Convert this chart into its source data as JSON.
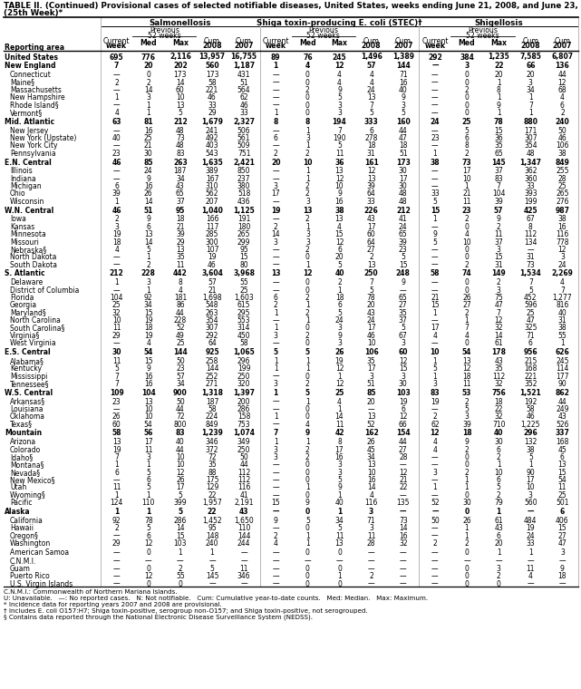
{
  "title_line1": "TABLE II. (Continued) Provisional cases of selected notifiable diseases, United States, weeks ending June 21, 2008, and June 23, 2007",
  "title_line2": "(25th Week)*",
  "col_groups": [
    "Salmonellosis",
    "Shiga toxin-producing E. coli (STEC)†",
    "Shigellosis"
  ],
  "rows": [
    [
      "United States",
      "695",
      "776",
      "2,116",
      "13,957",
      "16,755",
      "89",
      "76",
      "245",
      "1,496",
      "1,389",
      "292",
      "384",
      "1,235",
      "7,585",
      "6,807"
    ],
    [
      "New England",
      "7",
      "20",
      "202",
      "560",
      "1,187",
      "1",
      "4",
      "12",
      "57",
      "144",
      "—",
      "3",
      "22",
      "66",
      "136"
    ],
    [
      "Connecticut",
      "—",
      "0",
      "173",
      "173",
      "431",
      "—",
      "0",
      "4",
      "4",
      "71",
      "—",
      "0",
      "20",
      "20",
      "44"
    ],
    [
      "Maine§",
      "2",
      "2",
      "14",
      "58",
      "51",
      "—",
      "0",
      "4",
      "4",
      "16",
      "—",
      "0",
      "1",
      "3",
      "12"
    ],
    [
      "Massachusetts",
      "—",
      "14",
      "60",
      "221",
      "564",
      "—",
      "2",
      "9",
      "24",
      "40",
      "—",
      "2",
      "8",
      "34",
      "68"
    ],
    [
      "New Hampshire",
      "1",
      "3",
      "10",
      "46",
      "62",
      "—",
      "0",
      "5",
      "13",
      "9",
      "—",
      "0",
      "1",
      "1",
      "4"
    ],
    [
      "Rhode Island§",
      "—",
      "1",
      "13",
      "33",
      "46",
      "—",
      "0",
      "3",
      "7",
      "3",
      "—",
      "0",
      "9",
      "7",
      "6"
    ],
    [
      "Vermont§",
      "4",
      "1",
      "5",
      "29",
      "33",
      "1",
      "0",
      "3",
      "5",
      "5",
      "—",
      "0",
      "1",
      "1",
      "2"
    ],
    [
      "Mid. Atlantic",
      "63",
      "81",
      "212",
      "1,679",
      "2,327",
      "8",
      "8",
      "194",
      "333",
      "160",
      "24",
      "25",
      "78",
      "880",
      "240"
    ],
    [
      "New Jersey",
      "—",
      "16",
      "48",
      "241",
      "506",
      "—",
      "1",
      "7",
      "6",
      "44",
      "—",
      "5",
      "15",
      "171",
      "50"
    ],
    [
      "New York (Upstate)",
      "40",
      "25",
      "73",
      "492",
      "561",
      "6",
      "3",
      "190",
      "278",
      "47",
      "23",
      "6",
      "36",
      "307",
      "46"
    ],
    [
      "New York City",
      "—",
      "21",
      "48",
      "403",
      "509",
      "—",
      "1",
      "5",
      "18",
      "18",
      "—",
      "8",
      "35",
      "354",
      "106"
    ],
    [
      "Pennsylvania",
      "23",
      "30",
      "83",
      "543",
      "751",
      "2",
      "2",
      "11",
      "31",
      "51",
      "1",
      "2",
      "65",
      "48",
      "38"
    ],
    [
      "E.N. Central",
      "46",
      "85",
      "263",
      "1,635",
      "2,421",
      "20",
      "10",
      "36",
      "161",
      "173",
      "38",
      "73",
      "145",
      "1,347",
      "849"
    ],
    [
      "Illinois",
      "—",
      "24",
      "187",
      "389",
      "850",
      "—",
      "1",
      "13",
      "12",
      "30",
      "—",
      "17",
      "37",
      "362",
      "255"
    ],
    [
      "Indiana",
      "—",
      "9",
      "34",
      "167",
      "237",
      "—",
      "1",
      "12",
      "13",
      "17",
      "—",
      "10",
      "83",
      "360",
      "28"
    ],
    [
      "Michigan",
      "6",
      "16",
      "43",
      "310",
      "380",
      "3",
      "2",
      "10",
      "39",
      "30",
      "—",
      "1",
      "7",
      "33",
      "25"
    ],
    [
      "Ohio",
      "39",
      "26",
      "65",
      "562",
      "518",
      "17",
      "2",
      "9",
      "64",
      "48",
      "33",
      "21",
      "104",
      "393",
      "265"
    ],
    [
      "Wisconsin",
      "1",
      "14",
      "37",
      "207",
      "436",
      "—",
      "3",
      "16",
      "33",
      "48",
      "5",
      "11",
      "39",
      "199",
      "276"
    ],
    [
      "W.N. Central",
      "46",
      "51",
      "95",
      "1,040",
      "1,125",
      "19",
      "13",
      "38",
      "226",
      "212",
      "15",
      "23",
      "57",
      "425",
      "987"
    ],
    [
      "Iowa",
      "2",
      "9",
      "18",
      "166",
      "191",
      "—",
      "2",
      "13",
      "43",
      "41",
      "1",
      "2",
      "9",
      "67",
      "38"
    ],
    [
      "Kansas",
      "3",
      "6",
      "21",
      "117",
      "180",
      "2",
      "1",
      "4",
      "17",
      "24",
      "—",
      "0",
      "2",
      "8",
      "16"
    ],
    [
      "Minnesota",
      "19",
      "13",
      "39",
      "285",
      "265",
      "14",
      "3",
      "15",
      "60",
      "65",
      "9",
      "4",
      "11",
      "112",
      "116"
    ],
    [
      "Missouri",
      "18",
      "14",
      "29",
      "300",
      "299",
      "3",
      "3",
      "12",
      "64",
      "39",
      "5",
      "10",
      "37",
      "134",
      "778"
    ],
    [
      "Nebraska§",
      "4",
      "5",
      "13",
      "107",
      "95",
      "—",
      "2",
      "6",
      "27",
      "23",
      "—",
      "0",
      "3",
      "—",
      "12"
    ],
    [
      "North Dakota",
      "—",
      "1",
      "35",
      "19",
      "15",
      "—",
      "0",
      "20",
      "2",
      "5",
      "—",
      "0",
      "15",
      "31",
      "3"
    ],
    [
      "South Dakota",
      "—",
      "2",
      "11",
      "46",
      "80",
      "—",
      "1",
      "5",
      "13",
      "15",
      "—",
      "2",
      "31",
      "73",
      "24"
    ],
    [
      "S. Atlantic",
      "212",
      "228",
      "442",
      "3,604",
      "3,968",
      "13",
      "12",
      "40",
      "250",
      "248",
      "58",
      "74",
      "149",
      "1,534",
      "2,269"
    ],
    [
      "Delaware",
      "1",
      "3",
      "8",
      "57",
      "55",
      "—",
      "0",
      "2",
      "7",
      "9",
      "—",
      "0",
      "2",
      "7",
      "4"
    ],
    [
      "District of Columbia",
      "—",
      "1",
      "4",
      "21",
      "25",
      "—",
      "0",
      "1",
      "5",
      "—",
      "—",
      "0",
      "3",
      "5",
      "7"
    ],
    [
      "Florida",
      "104",
      "92",
      "181",
      "1,698",
      "1,603",
      "6",
      "2",
      "18",
      "78",
      "65",
      "21",
      "26",
      "75",
      "452",
      "1,277"
    ],
    [
      "Georgia",
      "25",
      "34",
      "86",
      "548",
      "615",
      "2",
      "1",
      "6",
      "20",
      "27",
      "15",
      "27",
      "47",
      "596",
      "816"
    ],
    [
      "Maryland§",
      "32",
      "15",
      "44",
      "263",
      "295",
      "1",
      "2",
      "5",
      "43",
      "35",
      "1",
      "2",
      "7",
      "25",
      "40"
    ],
    [
      "North Carolina",
      "10",
      "19",
      "228",
      "354",
      "553",
      "—",
      "1",
      "24",
      "24",
      "37",
      "—",
      "1",
      "12",
      "47",
      "31"
    ],
    [
      "South Carolina§",
      "11",
      "18",
      "52",
      "307",
      "314",
      "1",
      "0",
      "3",
      "17",
      "5",
      "17",
      "7",
      "32",
      "325",
      "38"
    ],
    [
      "Virginia§",
      "29",
      "19",
      "49",
      "292",
      "450",
      "3",
      "2",
      "9",
      "46",
      "67",
      "4",
      "4",
      "14",
      "71",
      "55"
    ],
    [
      "West Virginia",
      "—",
      "4",
      "25",
      "64",
      "58",
      "—",
      "0",
      "3",
      "10",
      "3",
      "—",
      "0",
      "61",
      "6",
      "1"
    ],
    [
      "E.S. Central",
      "30",
      "54",
      "144",
      "925",
      "1,065",
      "5",
      "5",
      "26",
      "106",
      "60",
      "10",
      "54",
      "178",
      "956",
      "626"
    ],
    [
      "Alabama§",
      "11",
      "15",
      "50",
      "258",
      "296",
      "1",
      "1",
      "19",
      "35",
      "12",
      "1",
      "13",
      "43",
      "215",
      "245"
    ],
    [
      "Kentucky",
      "5",
      "9",
      "23",
      "144",
      "199",
      "1",
      "1",
      "12",
      "17",
      "15",
      "5",
      "12",
      "35",
      "168",
      "114"
    ],
    [
      "Mississippi",
      "7",
      "16",
      "57",
      "252",
      "250",
      "—",
      "0",
      "1",
      "3",
      "3",
      "1",
      "18",
      "112",
      "221",
      "177"
    ],
    [
      "Tennessee§",
      "7",
      "16",
      "34",
      "271",
      "320",
      "3",
      "2",
      "12",
      "51",
      "30",
      "3",
      "11",
      "32",
      "352",
      "90"
    ],
    [
      "W.S. Central",
      "109",
      "104",
      "900",
      "1,318",
      "1,397",
      "1",
      "5",
      "25",
      "85",
      "103",
      "83",
      "53",
      "756",
      "1,521",
      "862"
    ],
    [
      "Arkansas§",
      "23",
      "13",
      "50",
      "187",
      "200",
      "—",
      "1",
      "4",
      "20",
      "19",
      "19",
      "2",
      "18",
      "192",
      "44"
    ],
    [
      "Louisiana",
      "—",
      "10",
      "44",
      "58",
      "286",
      "—",
      "0",
      "1",
      "—",
      "6",
      "—",
      "5",
      "22",
      "58",
      "249"
    ],
    [
      "Oklahoma",
      "26",
      "10",
      "72",
      "224",
      "158",
      "1",
      "0",
      "14",
      "13",
      "12",
      "2",
      "3",
      "32",
      "46",
      "43"
    ],
    [
      "Texas§",
      "60",
      "54",
      "800",
      "849",
      "753",
      "—",
      "4",
      "11",
      "52",
      "66",
      "62",
      "39",
      "710",
      "1,225",
      "526"
    ],
    [
      "Mountain",
      "58",
      "56",
      "83",
      "1,239",
      "1,074",
      "7",
      "9",
      "42",
      "162",
      "154",
      "12",
      "18",
      "40",
      "296",
      "337"
    ],
    [
      "Arizona",
      "13",
      "17",
      "40",
      "346",
      "349",
      "1",
      "1",
      "8",
      "26",
      "44",
      "4",
      "9",
      "30",
      "132",
      "168"
    ],
    [
      "Colorado",
      "19",
      "11",
      "44",
      "372",
      "250",
      "3",
      "2",
      "17",
      "45",
      "27",
      "4",
      "2",
      "6",
      "38",
      "45"
    ],
    [
      "Idaho§",
      "7",
      "3",
      "10",
      "72",
      "50",
      "3",
      "2",
      "16",
      "34",
      "28",
      "—",
      "0",
      "2",
      "5",
      "6"
    ],
    [
      "Montana§",
      "1",
      "1",
      "10",
      "35",
      "44",
      "—",
      "0",
      "3",
      "13",
      "—",
      "—",
      "0",
      "1",
      "1",
      "13"
    ],
    [
      "Nevada§",
      "6",
      "5",
      "12",
      "88",
      "112",
      "—",
      "0",
      "3",
      "10",
      "12",
      "3",
      "2",
      "10",
      "90",
      "15"
    ],
    [
      "New Mexico§",
      "—",
      "6",
      "26",
      "175",
      "112",
      "—",
      "0",
      "5",
      "16",
      "21",
      "—",
      "1",
      "6",
      "17",
      "54"
    ],
    [
      "Utah",
      "11",
      "5",
      "17",
      "129",
      "116",
      "—",
      "1",
      "9",
      "14",
      "22",
      "1",
      "1",
      "5",
      "10",
      "11"
    ],
    [
      "Wyoming§",
      "1",
      "1",
      "5",
      "22",
      "41",
      "—",
      "0",
      "1",
      "4",
      "—",
      "—",
      "0",
      "2",
      "3",
      "25"
    ],
    [
      "Pacific",
      "124",
      "110",
      "399",
      "1,957",
      "2,191",
      "15",
      "9",
      "40",
      "116",
      "135",
      "52",
      "30",
      "79",
      "560",
      "501"
    ],
    [
      "Alaska",
      "1",
      "1",
      "5",
      "22",
      "43",
      "—",
      "0",
      "1",
      "3",
      "—",
      "—",
      "0",
      "1",
      "—",
      "6"
    ],
    [
      "California",
      "92",
      "78",
      "286",
      "1,452",
      "1,650",
      "9",
      "5",
      "34",
      "71",
      "73",
      "50",
      "26",
      "61",
      "484",
      "406"
    ],
    [
      "Hawaii",
      "2",
      "5",
      "14",
      "95",
      "110",
      "—",
      "0",
      "5",
      "3",
      "14",
      "—",
      "1",
      "43",
      "19",
      "15"
    ],
    [
      "Oregon§",
      "—",
      "6",
      "15",
      "148",
      "144",
      "2",
      "1",
      "11",
      "11",
      "16",
      "—",
      "1",
      "6",
      "24",
      "27"
    ],
    [
      "Washington",
      "29",
      "12",
      "103",
      "240",
      "244",
      "4",
      "1",
      "13",
      "28",
      "32",
      "2",
      "2",
      "20",
      "33",
      "47"
    ],
    [
      "American Samoa",
      "—",
      "0",
      "1",
      "1",
      "—",
      "—",
      "0",
      "0",
      "—",
      "—",
      "—",
      "0",
      "1",
      "1",
      "3"
    ],
    [
      "C.N.M.I.",
      "—",
      "—",
      "—",
      "—",
      "—",
      "—",
      "—",
      "—",
      "—",
      "—",
      "—",
      "—",
      "—",
      "—",
      "—"
    ],
    [
      "Guam",
      "—",
      "0",
      "2",
      "5",
      "11",
      "—",
      "0",
      "0",
      "—",
      "—",
      "—",
      "0",
      "3",
      "11",
      "9"
    ],
    [
      "Puerto Rico",
      "—",
      "12",
      "55",
      "145",
      "346",
      "—",
      "0",
      "1",
      "2",
      "—",
      "—",
      "0",
      "2",
      "4",
      "18"
    ],
    [
      "U.S. Virgin Islands",
      "—",
      "0",
      "0",
      "—",
      "—",
      "—",
      "0",
      "0",
      "—",
      "—",
      "—",
      "0",
      "0",
      "—",
      "—"
    ]
  ],
  "bold_rows": [
    0,
    1,
    8,
    13,
    19,
    27,
    37,
    42,
    47,
    57
  ],
  "gap_after": [
    0,
    1,
    7,
    8,
    12,
    13,
    18,
    19,
    26,
    27,
    36,
    37,
    41,
    42,
    46,
    47,
    56,
    57,
    61,
    62,
    66
  ],
  "footnotes": [
    "C.N.M.I.: Commonwealth of Northern Mariana Islands.",
    "U: Unavailable.   —: No reported cases.   N: Not notifiable.   Cum: Cumulative year-to-date counts.   Med: Median.   Max: Maximum.",
    "* Incidence data for reporting years 2007 and 2008 are provisional.",
    "† Includes E. coli O157:H7; Shiga toxin-positive, serogroup non-O157; and Shiga toxin-positive, not serogrouped.",
    "§ Contains data reported through the National Electronic Disease Surveillance System (NEDSS)."
  ]
}
